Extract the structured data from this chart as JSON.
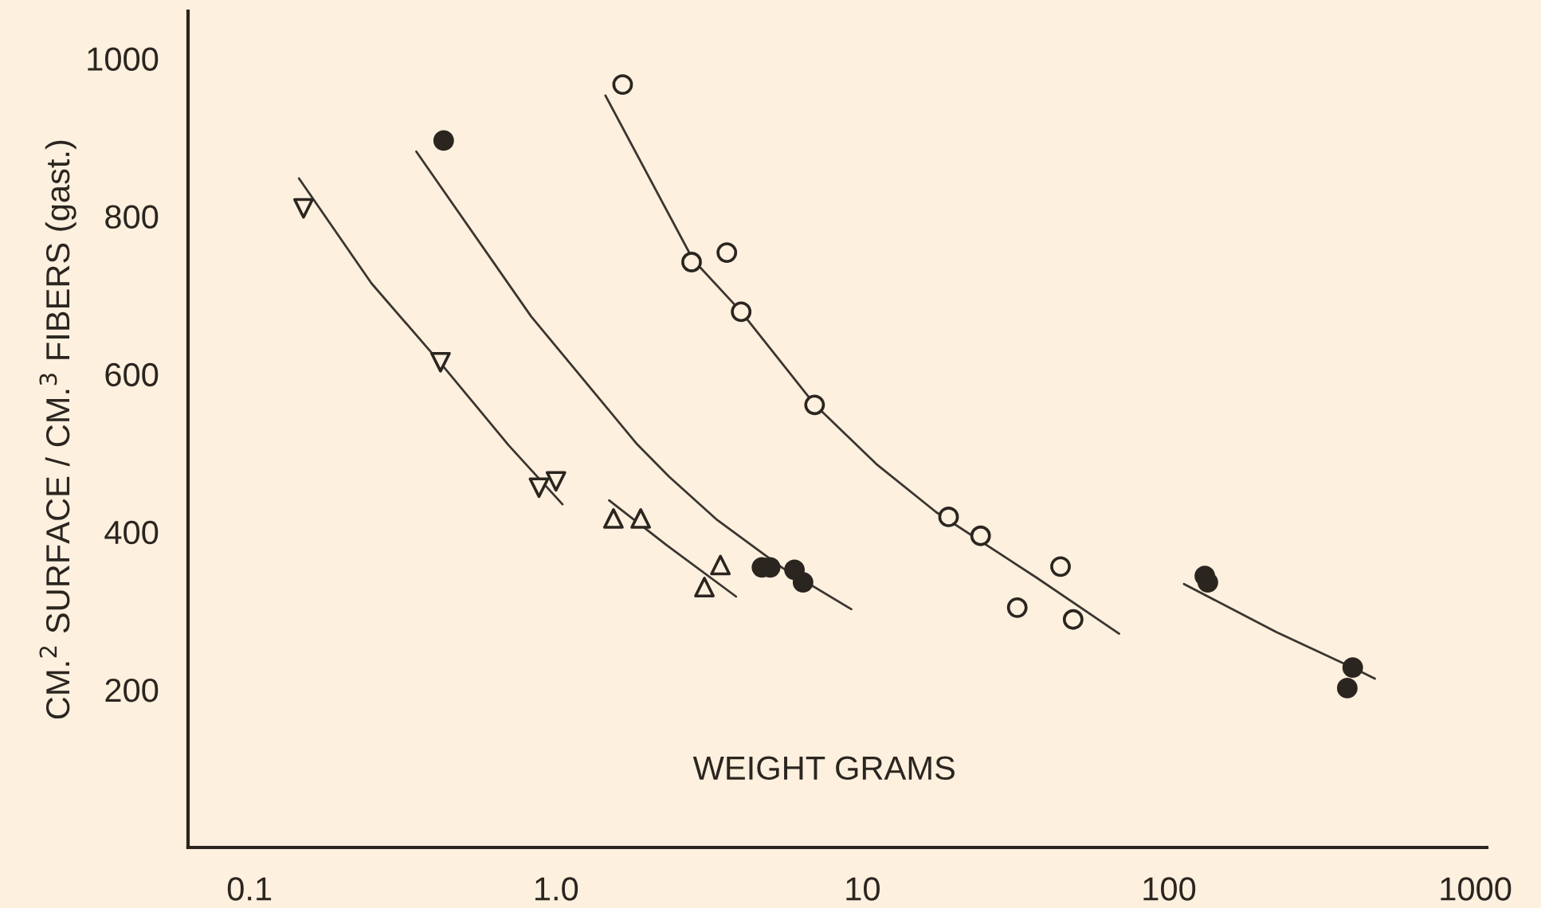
{
  "chart_data": {
    "type": "scatter",
    "xlabel": "WEIGHT GRAMS",
    "ylabel": "CM.$^{2}$ SURFACE / CM.$^{3}$ FIBERS (gast.)",
    "log": "x",
    "xlim": [
      0.063,
      1090
    ],
    "ylim": [
      0,
      1060
    ],
    "xticks": [
      {
        "value": 0.1,
        "label": "0.1"
      },
      {
        "value": 1,
        "label": "1.0"
      },
      10,
      100,
      1000
    ],
    "yticks": [
      200,
      400,
      600,
      800,
      1000
    ],
    "grid": false,
    "legend": false,
    "series": [
      {
        "marker": "triangle_down",
        "color": "#2b2520",
        "x": [
          0.15,
          0.42,
          0.88,
          1.0
        ],
        "values": [
          810,
          615,
          456,
          464
        ]
      },
      {
        "marker": "triangle",
        "color": "#2b2520",
        "x": [
          1.54,
          1.89,
          3.05,
          3.44
        ],
        "values": [
          417,
          417,
          330,
          358
        ]
      },
      {
        "marker": "circle",
        "color": "#2b2520",
        "colors": [
          "#2b2520",
          "#2b2520",
          "#2b2520",
          "#2b2520",
          "#2b2520"
        ],
        "x": [
          0.43,
          4.7,
          5.0,
          6.0,
          6.4
        ],
        "values": [
          896,
          355,
          355,
          352,
          336
        ]
      },
      {
        "marker": "circle",
        "color": "#2b2520",
        "x": [
          1.65,
          2.77,
          3.61,
          4.02,
          6.98,
          19.1,
          24.3,
          32,
          44.3,
          48.7
        ],
        "values": [
          967,
          742,
          754,
          679,
          561,
          419,
          395,
          304,
          356,
          289
        ]
      },
      {
        "marker": "circle",
        "color": "#2b2520",
        "colors": [
          "#2b2520",
          "#2b2520",
          "#2b2520",
          "#2b2520"
        ],
        "x": [
          131,
          134,
          382,
          398
        ],
        "values": [
          344,
          336,
          202,
          228
        ]
      },
      {
        "type": "line",
        "color": "#3a3530",
        "x": [
          0.145,
          0.25,
          0.42,
          0.7,
          1.05
        ],
        "values": [
          848,
          715,
          614,
          510,
          435
        ]
      },
      {
        "type": "line",
        "color": "#3a3530",
        "x": [
          0.35,
          0.83,
          1.84,
          2.34,
          3.36,
          5.5,
          9.2
        ],
        "values": [
          882,
          673,
          511,
          470,
          415,
          354,
          302
        ]
      },
      {
        "type": "line",
        "color": "#3a3530",
        "x": [
          1.49,
          2.3,
          3.87
        ],
        "values": [
          440,
          383,
          318
        ]
      },
      {
        "type": "line",
        "color": "#3a3530",
        "x": [
          1.45,
          2.8,
          4.0,
          7.0,
          11.1,
          17.4,
          37,
          68.8
        ],
        "values": [
          953,
          745,
          680,
          561,
          486,
          425,
          342,
          271
        ]
      },
      {
        "type": "line",
        "color": "#3a3530",
        "x": [
          112,
          224,
          398,
          470
        ],
        "values": [
          334,
          273,
          228,
          214
        ]
      }
    ]
  }
}
